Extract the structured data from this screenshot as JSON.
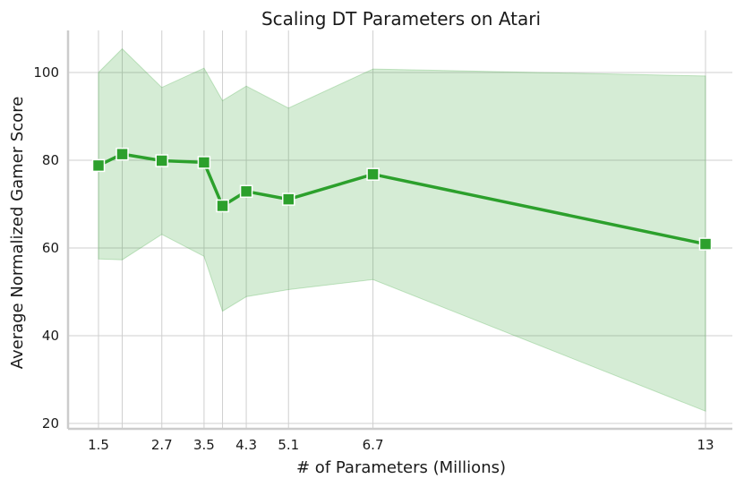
{
  "chart_data": {
    "type": "line",
    "title": "Scaling DT Parameters on Atari",
    "xlabel": "# of Parameters (Millions)",
    "ylabel": "Average Normalized Gamer Score",
    "xlim": [
      0.9,
      13.4
    ],
    "ylim": [
      19,
      109
    ],
    "x_ticks": [
      1.5,
      2.7,
      3.5,
      4.3,
      5.1,
      6.7,
      13
    ],
    "x_tick_labels": [
      "1.5",
      "2.7",
      "3.5",
      "4.3",
      "5.1",
      "6.7",
      "13"
    ],
    "x_grid_values": [
      1.5,
      1.95,
      2.7,
      3.5,
      3.85,
      4.3,
      5.1,
      6.7,
      13
    ],
    "y_ticks": [
      20,
      40,
      60,
      80,
      100
    ],
    "y_tick_labels": [
      "20",
      "40",
      "60",
      "80",
      "100"
    ],
    "grid": true,
    "color": "#2ca02c",
    "series": [
      {
        "x": [
          1.5,
          1.95,
          2.7,
          3.5,
          3.85,
          4.3,
          5.1,
          6.7,
          13
        ],
        "y": [
          78.8,
          81.4,
          79.9,
          79.5,
          69.6,
          72.9,
          71.1,
          76.8,
          60.9
        ],
        "lower": [
          57.5,
          57.3,
          63.1,
          58.1,
          45.6,
          48.9,
          50.5,
          52.8,
          22.8
        ],
        "upper": [
          100.0,
          105.4,
          96.6,
          101.0,
          93.6,
          96.9,
          91.9,
          100.8,
          99.2
        ]
      }
    ]
  }
}
